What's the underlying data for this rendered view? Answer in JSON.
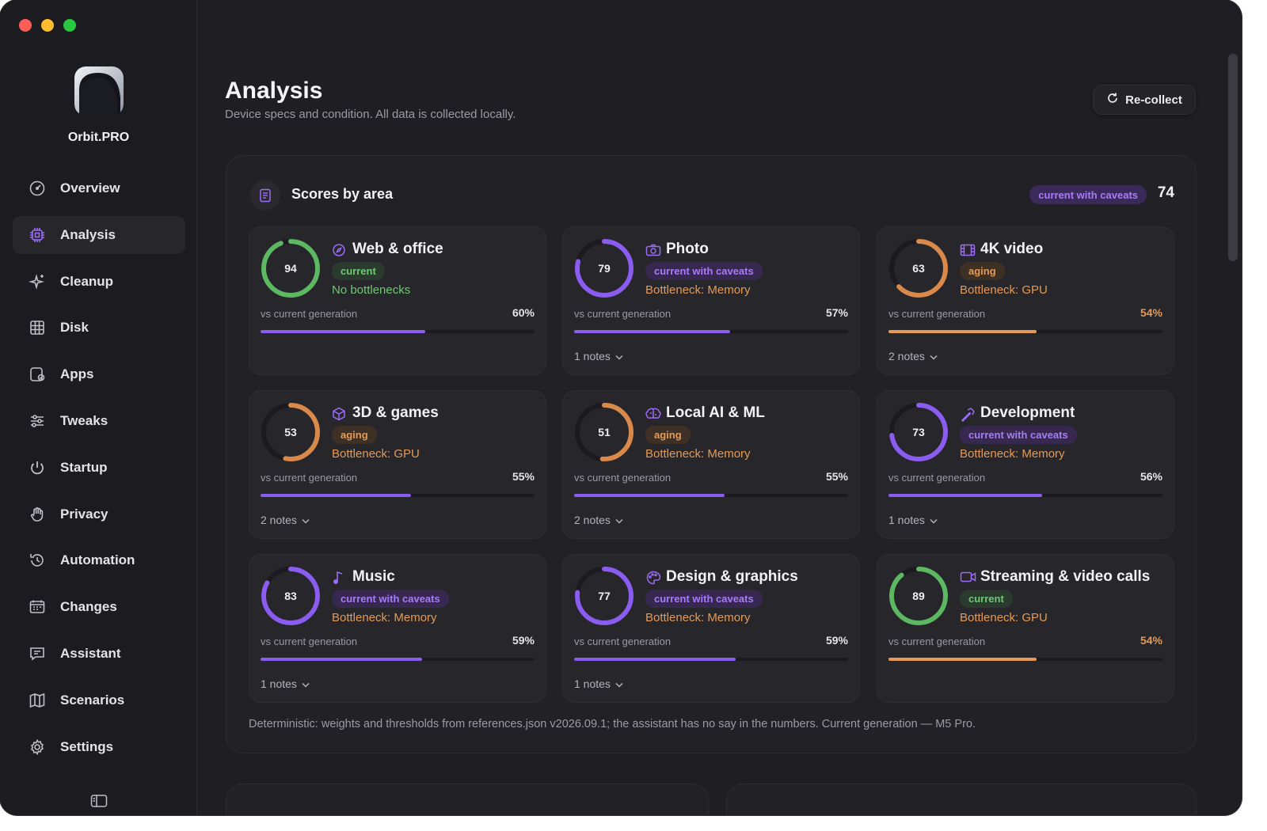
{
  "app": {
    "name": "Orbit.PRO"
  },
  "sidebar": {
    "items": [
      {
        "label": "Overview",
        "icon": "gauge-icon"
      },
      {
        "label": "Analysis",
        "icon": "chip-icon",
        "active": true
      },
      {
        "label": "Cleanup",
        "icon": "sparkle-icon"
      },
      {
        "label": "Disk",
        "icon": "disk-grid-icon"
      },
      {
        "label": "Apps",
        "icon": "apps-icon"
      },
      {
        "label": "Tweaks",
        "icon": "sliders-icon"
      },
      {
        "label": "Startup",
        "icon": "power-icon"
      },
      {
        "label": "Privacy",
        "icon": "hand-icon"
      },
      {
        "label": "Automation",
        "icon": "history-icon"
      },
      {
        "label": "Changes",
        "icon": "calendar-icon"
      },
      {
        "label": "Assistant",
        "icon": "chat-icon"
      },
      {
        "label": "Scenarios",
        "icon": "map-icon"
      },
      {
        "label": "Settings",
        "icon": "gear-icon"
      }
    ]
  },
  "header": {
    "title": "Analysis",
    "subtitle": "Device specs and condition. All data is collected locally.",
    "recollect_label": "Re-collect"
  },
  "panel": {
    "title": "Scores by area",
    "badge": "current with caveats",
    "score": "74",
    "footnote": "Deterministic: weights and thresholds from references.json v2026.09.1; the assistant has no say in the numbers. Current generation — M5 Pro."
  },
  "colors": {
    "accent_purple": "#8b5cf0",
    "ring_green": "#5db862",
    "ring_orange": "#d9894a",
    "ring_purple": "#8b5cf0"
  },
  "cards": [
    {
      "title": "Web & office",
      "icon": "compass-icon",
      "score": "94",
      "score_value": 94,
      "ring": "green",
      "badge": "current",
      "badge_style": "green",
      "bottleneck": "No bottlenecks",
      "bottleneck_style": "green",
      "vs_label": "vs current generation",
      "pct": "60%",
      "pct_value": 60,
      "bar_style": "purple",
      "notes": ""
    },
    {
      "title": "Photo",
      "icon": "camera-icon",
      "score": "79",
      "score_value": 79,
      "ring": "purple",
      "badge": "current with caveats",
      "badge_style": "purple",
      "bottleneck": "Bottleneck: Memory",
      "bottleneck_style": "orange",
      "vs_label": "vs current generation",
      "pct": "57%",
      "pct_value": 57,
      "bar_style": "purple",
      "notes": "1 notes"
    },
    {
      "title": "4K video",
      "icon": "film-icon",
      "score": "63",
      "score_value": 63,
      "ring": "orange",
      "badge": "aging",
      "badge_style": "orange",
      "bottleneck": "Bottleneck: GPU",
      "bottleneck_style": "orange",
      "vs_label": "vs current generation",
      "pct": "54%",
      "pct_value": 54,
      "bar_style": "orange",
      "notes": "2 notes"
    },
    {
      "title": "3D & games",
      "icon": "cube-icon",
      "score": "53",
      "score_value": 53,
      "ring": "orange",
      "badge": "aging",
      "badge_style": "orange",
      "bottleneck": "Bottleneck: GPU",
      "bottleneck_style": "orange",
      "vs_label": "vs current generation",
      "pct": "55%",
      "pct_value": 55,
      "bar_style": "purple",
      "notes": "2 notes"
    },
    {
      "title": "Local AI & ML",
      "icon": "brain-icon",
      "score": "51",
      "score_value": 51,
      "ring": "orange",
      "badge": "aging",
      "badge_style": "orange",
      "bottleneck": "Bottleneck: Memory",
      "bottleneck_style": "orange",
      "vs_label": "vs current generation",
      "pct": "55%",
      "pct_value": 55,
      "bar_style": "purple",
      "notes": "2 notes"
    },
    {
      "title": "Development",
      "icon": "hammer-icon",
      "score": "73",
      "score_value": 73,
      "ring": "purple",
      "badge": "current with caveats",
      "badge_style": "purple",
      "bottleneck": "Bottleneck: Memory",
      "bottleneck_style": "orange",
      "vs_label": "vs current generation",
      "pct": "56%",
      "pct_value": 56,
      "bar_style": "purple",
      "notes": "1 notes"
    },
    {
      "title": "Music",
      "icon": "music-note-icon",
      "score": "83",
      "score_value": 83,
      "ring": "purple",
      "badge": "current with caveats",
      "badge_style": "purple",
      "bottleneck": "Bottleneck: Memory",
      "bottleneck_style": "orange",
      "vs_label": "vs current generation",
      "pct": "59%",
      "pct_value": 59,
      "bar_style": "purple",
      "notes": "1 notes"
    },
    {
      "title": "Design & graphics",
      "icon": "palette-icon",
      "score": "77",
      "score_value": 77,
      "ring": "purple",
      "badge": "current with caveats",
      "badge_style": "purple",
      "bottleneck": "Bottleneck: Memory",
      "bottleneck_style": "orange",
      "vs_label": "vs current generation",
      "pct": "59%",
      "pct_value": 59,
      "bar_style": "purple",
      "notes": "1 notes"
    },
    {
      "title": "Streaming & video calls",
      "icon": "video-camera-icon",
      "score": "89",
      "score_value": 89,
      "ring": "green",
      "badge": "current",
      "badge_style": "green",
      "bottleneck": "Bottleneck: GPU",
      "bottleneck_style": "orange",
      "vs_label": "vs current generation",
      "pct": "54%",
      "pct_value": 54,
      "bar_style": "orange",
      "notes": ""
    }
  ]
}
